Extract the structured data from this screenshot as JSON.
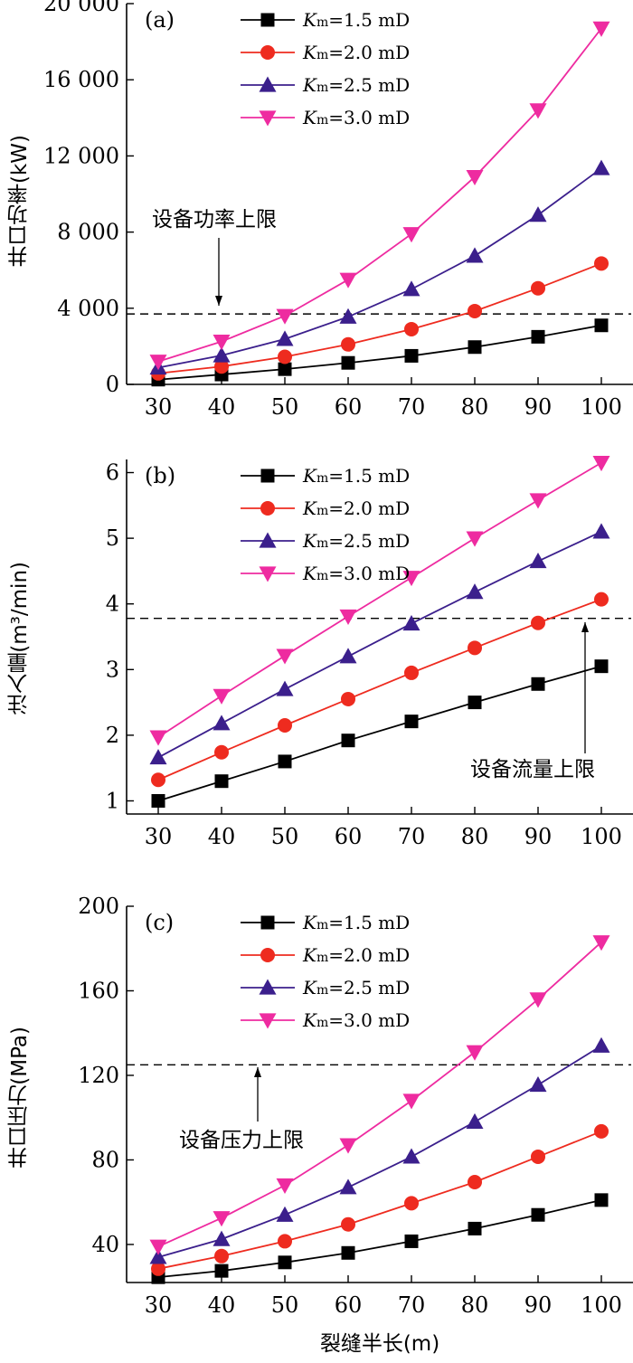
{
  "chart_data": [
    {
      "type": "line",
      "panel_label": "(a)",
      "ylabel": "井口功率(kW)",
      "x": [
        30,
        40,
        50,
        60,
        70,
        80,
        90,
        100
      ],
      "xlim": [
        25,
        105
      ],
      "ylim": [
        0,
        20000
      ],
      "yticks": [
        0,
        4000,
        8000,
        12000,
        16000,
        20000
      ],
      "ytick_labels": [
        "0",
        "4 000",
        "8 000",
        "12 000",
        "16 000",
        "20 000"
      ],
      "series": [
        {
          "name": "Km=1.5 mD",
          "color": "#000000",
          "marker": "square",
          "values": [
            250,
            520,
            800,
            1130,
            1500,
            1960,
            2500,
            3100
          ]
        },
        {
          "name": "Km=2.0 mD",
          "color": "#ee2b1f",
          "marker": "circle",
          "values": [
            580,
            940,
            1450,
            2100,
            2900,
            3850,
            5050,
            6350
          ]
        },
        {
          "name": "Km=2.5 mD",
          "color": "#3b1f8c",
          "marker": "triangle-up",
          "values": [
            880,
            1520,
            2380,
            3550,
            5000,
            6750,
            8900,
            11350
          ]
        },
        {
          "name": "Km=3.0 mD",
          "color": "#ee2ba0",
          "marker": "triangle-down",
          "values": [
            1200,
            2250,
            3600,
            5500,
            7900,
            10900,
            14400,
            18700
          ]
        }
      ],
      "reference_line": {
        "value": 3700,
        "style": "dashed"
      },
      "annotation": {
        "text": "设备功率上限",
        "arrow": "down"
      },
      "legend": "top-center"
    },
    {
      "type": "line",
      "panel_label": "(b)",
      "ylabel": "注入量(m³/min)",
      "x": [
        30,
        40,
        50,
        60,
        70,
        80,
        90,
        100
      ],
      "xlim": [
        25,
        105
      ],
      "ylim": [
        0.8,
        6.2
      ],
      "yticks": [
        1,
        2,
        3,
        4,
        5,
        6
      ],
      "ytick_labels": [
        "1",
        "2",
        "3",
        "4",
        "5",
        "6"
      ],
      "series": [
        {
          "name": "Km=1.5 mD",
          "color": "#000000",
          "marker": "square",
          "values": [
            1.0,
            1.3,
            1.6,
            1.92,
            2.21,
            2.5,
            2.78,
            3.05
          ]
        },
        {
          "name": "Km=2.0 mD",
          "color": "#ee2b1f",
          "marker": "circle",
          "values": [
            1.32,
            1.74,
            2.15,
            2.55,
            2.95,
            3.33,
            3.71,
            4.07
          ]
        },
        {
          "name": "Km=2.5 mD",
          "color": "#3b1f8c",
          "marker": "triangle-up",
          "values": [
            1.66,
            2.18,
            2.7,
            3.2,
            3.7,
            4.18,
            4.65,
            5.1
          ]
        },
        {
          "name": "Km=3.0 mD",
          "color": "#ee2ba0",
          "marker": "triangle-down",
          "values": [
            1.97,
            2.6,
            3.21,
            3.81,
            4.4,
            5.0,
            5.58,
            6.15
          ]
        }
      ],
      "reference_line": {
        "value": 3.78,
        "style": "dashed"
      },
      "annotation": {
        "text": "设备流量上限",
        "arrow": "up"
      },
      "legend": "top-center"
    },
    {
      "type": "line",
      "panel_label": "(c)",
      "ylabel": "井口压力(MPa)",
      "xlabel": "裂缝半长(m)",
      "x": [
        30,
        40,
        50,
        60,
        70,
        80,
        90,
        100
      ],
      "xlim": [
        25,
        105
      ],
      "ylim": [
        22,
        200
      ],
      "yticks": [
        40,
        80,
        120,
        160,
        200
      ],
      "ytick_labels": [
        "40",
        "80",
        "120",
        "160",
        "200"
      ],
      "series": [
        {
          "name": "Km=1.5 mD",
          "color": "#000000",
          "marker": "square",
          "values": [
            24.5,
            27.5,
            31.5,
            36,
            41.5,
            47.5,
            54,
            61
          ]
        },
        {
          "name": "Km=2.0 mD",
          "color": "#ee2b1f",
          "marker": "circle",
          "values": [
            28.5,
            34.5,
            41.5,
            49.5,
            59.5,
            69.5,
            81.5,
            93.5
          ]
        },
        {
          "name": "Km=2.5 mD",
          "color": "#3b1f8c",
          "marker": "triangle-up",
          "values": [
            34,
            42.5,
            54,
            67,
            81.5,
            98,
            115.5,
            134
          ]
        },
        {
          "name": "Km=3.0 mD",
          "color": "#ee2ba0",
          "marker": "triangle-down",
          "values": [
            39,
            52.5,
            68,
            87,
            108,
            131,
            156,
            183
          ]
        }
      ],
      "reference_line": {
        "value": 125,
        "style": "dashed"
      },
      "annotation": {
        "text": "设备压力上限",
        "arrow": "up"
      },
      "legend": "top-center"
    }
  ]
}
